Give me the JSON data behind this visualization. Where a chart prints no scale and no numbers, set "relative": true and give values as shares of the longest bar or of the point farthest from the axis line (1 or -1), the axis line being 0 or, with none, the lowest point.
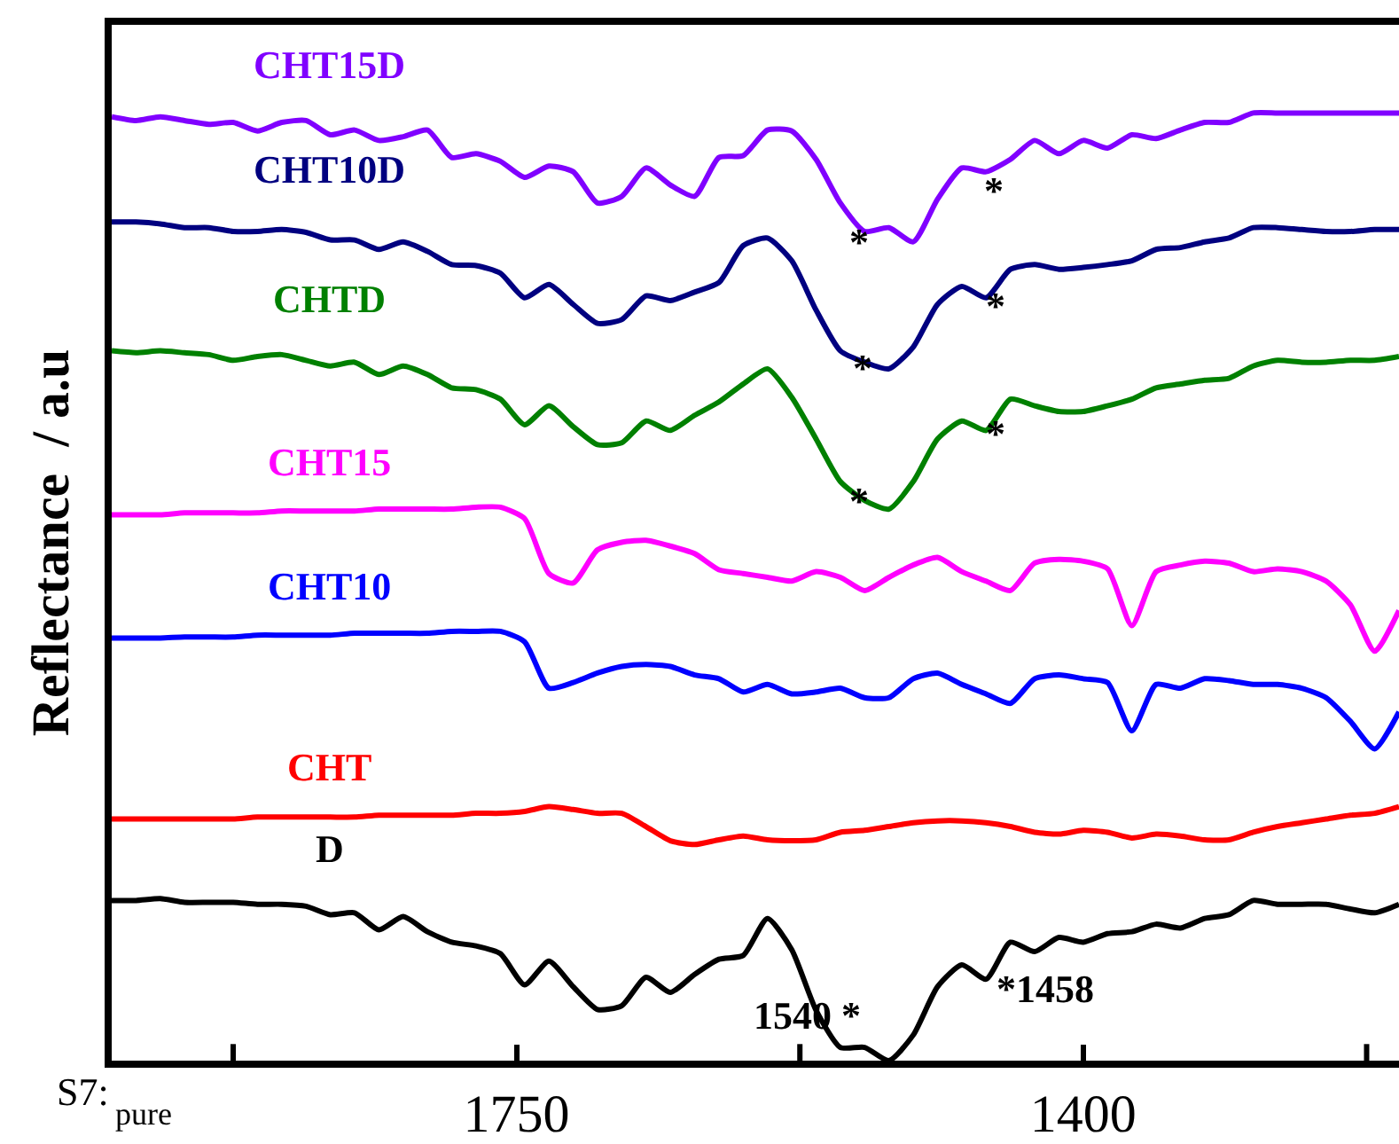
{
  "chart_data": {
    "type": "line",
    "ylabel": "Reflectance  / a.u",
    "relative": true,
    "legend": false,
    "marker": "none",
    "line_style": "solid",
    "xlim": [
      2000,
      1205
    ],
    "xticks": [
      {
        "value": 1925,
        "label": null
      },
      1750,
      {
        "value": 1575,
        "label": null
      },
      1400,
      {
        "value": 1225,
        "label": null
      }
    ],
    "x": [
      2000,
      1985,
      1970,
      1955,
      1940,
      1925,
      1910,
      1895,
      1880,
      1865,
      1850,
      1835,
      1820,
      1805,
      1790,
      1775,
      1760,
      1745,
      1730,
      1715,
      1700,
      1685,
      1670,
      1655,
      1640,
      1625,
      1610,
      1595,
      1580,
      1565,
      1550,
      1535,
      1520,
      1505,
      1490,
      1475,
      1460,
      1445,
      1430,
      1415,
      1400,
      1385,
      1370,
      1355,
      1340,
      1325,
      1310,
      1295,
      1280,
      1265,
      1250,
      1235,
      1220,
      1205
    ],
    "series": [
      {
        "name": "CHT15D",
        "color": "#8000ff",
        "values": [
          0.996,
          0.992,
          0.996,
          0.992,
          0.988,
          0.99,
          0.981,
          0.99,
          0.992,
          0.977,
          0.982,
          0.971,
          0.975,
          0.982,
          0.953,
          0.957,
          0.949,
          0.932,
          0.944,
          0.938,
          0.905,
          0.912,
          0.942,
          0.924,
          0.912,
          0.953,
          0.955,
          0.982,
          0.981,
          0.951,
          0.905,
          0.875,
          0.879,
          0.864,
          0.909,
          0.942,
          0.938,
          0.951,
          0.971,
          0.957,
          0.971,
          0.963,
          0.977,
          0.973,
          0.982,
          0.99,
          0.99,
          1,
          1,
          1,
          1,
          1,
          1,
          1
        ]
      },
      {
        "name": "CHT10D",
        "color": "#000080",
        "values": [
          0.885,
          0.885,
          0.883,
          0.879,
          0.879,
          0.875,
          0.875,
          0.877,
          0.874,
          0.866,
          0.866,
          0.856,
          0.864,
          0.854,
          0.84,
          0.839,
          0.831,
          0.805,
          0.819,
          0.798,
          0.778,
          0.782,
          0.807,
          0.802,
          0.811,
          0.821,
          0.86,
          0.868,
          0.844,
          0.792,
          0.749,
          0.737,
          0.73,
          0.753,
          0.798,
          0.817,
          0.805,
          0.835,
          0.84,
          0.835,
          0.837,
          0.84,
          0.844,
          0.856,
          0.858,
          0.864,
          0.868,
          0.879,
          0.879,
          0.877,
          0.875,
          0.875,
          0.877,
          0.877
        ]
      },
      {
        "name": "CHTD",
        "color": "#008000",
        "values": [
          0.749,
          0.747,
          0.749,
          0.747,
          0.745,
          0.739,
          0.743,
          0.745,
          0.739,
          0.733,
          0.737,
          0.724,
          0.733,
          0.724,
          0.71,
          0.708,
          0.698,
          0.671,
          0.691,
          0.669,
          0.65,
          0.652,
          0.675,
          0.665,
          0.681,
          0.695,
          0.714,
          0.73,
          0.7,
          0.656,
          0.611,
          0.591,
          0.582,
          0.611,
          0.656,
          0.675,
          0.665,
          0.698,
          0.691,
          0.685,
          0.685,
          0.691,
          0.698,
          0.71,
          0.714,
          0.718,
          0.72,
          0.733,
          0.739,
          0.737,
          0.737,
          0.739,
          0.739,
          0.743
        ]
      },
      {
        "name": "CHT15",
        "color": "#ff00ff",
        "values": [
          0.576,
          0.576,
          0.576,
          0.578,
          0.578,
          0.578,
          0.578,
          0.58,
          0.58,
          0.58,
          0.58,
          0.582,
          0.582,
          0.582,
          0.582,
          0.584,
          0.584,
          0.572,
          0.514,
          0.504,
          0.539,
          0.547,
          0.549,
          0.543,
          0.535,
          0.518,
          0.514,
          0.51,
          0.506,
          0.516,
          0.51,
          0.496,
          0.51,
          0.523,
          0.531,
          0.516,
          0.506,
          0.496,
          0.525,
          0.529,
          0.527,
          0.519,
          0.459,
          0.516,
          0.523,
          0.527,
          0.525,
          0.516,
          0.519,
          0.516,
          0.506,
          0.481,
          0.432,
          0.475
        ]
      },
      {
        "name": "CHT10",
        "color": "#0000ff",
        "values": [
          0.446,
          0.446,
          0.446,
          0.447,
          0.447,
          0.447,
          0.449,
          0.449,
          0.449,
          0.449,
          0.451,
          0.451,
          0.451,
          0.451,
          0.453,
          0.453,
          0.453,
          0.442,
          0.393,
          0.399,
          0.409,
          0.416,
          0.418,
          0.416,
          0.407,
          0.403,
          0.389,
          0.397,
          0.387,
          0.389,
          0.393,
          0.383,
          0.383,
          0.403,
          0.409,
          0.397,
          0.387,
          0.377,
          0.403,
          0.407,
          0.403,
          0.399,
          0.348,
          0.397,
          0.393,
          0.403,
          0.401,
          0.397,
          0.397,
          0.393,
          0.383,
          0.358,
          0.329,
          0.368
        ]
      },
      {
        "name": "CHT",
        "color": "#ff0000",
        "values": [
          0.255,
          0.255,
          0.255,
          0.255,
          0.255,
          0.255,
          0.257,
          0.257,
          0.257,
          0.257,
          0.257,
          0.259,
          0.259,
          0.259,
          0.259,
          0.261,
          0.261,
          0.263,
          0.268,
          0.265,
          0.261,
          0.261,
          0.247,
          0.232,
          0.228,
          0.233,
          0.237,
          0.233,
          0.232,
          0.233,
          0.241,
          0.243,
          0.247,
          0.251,
          0.253,
          0.253,
          0.251,
          0.247,
          0.241,
          0.239,
          0.243,
          0.241,
          0.235,
          0.239,
          0.237,
          0.233,
          0.233,
          0.241,
          0.247,
          0.251,
          0.255,
          0.259,
          0.261,
          0.268
        ]
      },
      {
        "name": "D",
        "color": "#000000",
        "values": [
          0.169,
          0.169,
          0.171,
          0.167,
          0.167,
          0.167,
          0.165,
          0.165,
          0.163,
          0.154,
          0.156,
          0.138,
          0.152,
          0.136,
          0.125,
          0.121,
          0.113,
          0.08,
          0.105,
          0.078,
          0.054,
          0.058,
          0.088,
          0.072,
          0.091,
          0.107,
          0.111,
          0.15,
          0.117,
          0.053,
          0.014,
          0.014,
          0,
          0.027,
          0.078,
          0.101,
          0.086,
          0.125,
          0.115,
          0.13,
          0.125,
          0.134,
          0.136,
          0.144,
          0.14,
          0.15,
          0.154,
          0.169,
          0.165,
          0.165,
          0.165,
          0.16,
          0.156,
          0.165
        ]
      }
    ],
    "annotations": [
      "*",
      "*",
      "*",
      "*",
      "*",
      "*",
      "1540 *",
      "*1458",
      "S7:",
      "pure"
    ]
  }
}
